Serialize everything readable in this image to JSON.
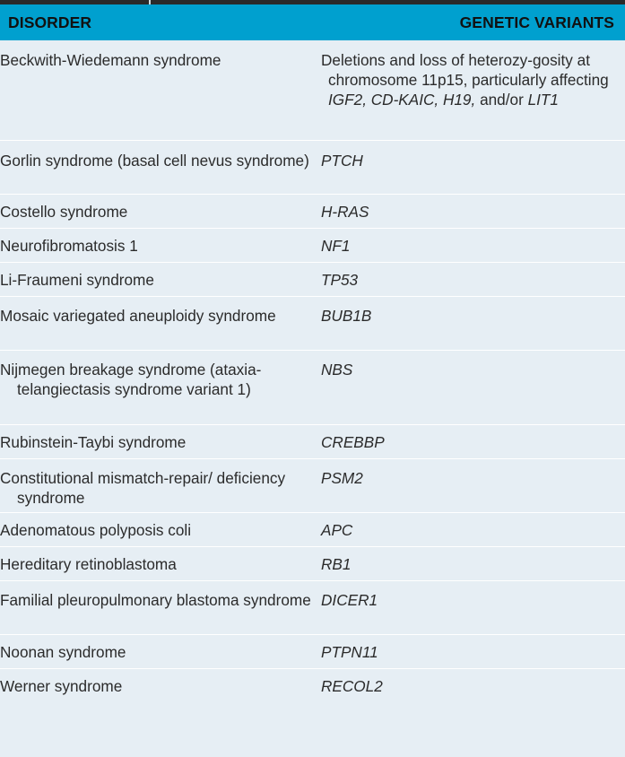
{
  "header": {
    "disorder_label": "DISORDER",
    "variants_label": "GENETIC VARIANTS"
  },
  "rows": [
    {
      "disorder": "Beckwith-Wiedemann syndrome",
      "variant_text_1": "Deletions and loss of heterozy-gosity at chromosome 11p15, particularly affecting",
      "variant_gene_1": "IGF2, CD-KAIC, H19,",
      "variant_text_2": "and/or",
      "variant_gene_2": "LIT1"
    },
    {
      "disorder": "Gorlin syndrome (basal cell nevus syndrome)",
      "variant": "PTCH"
    },
    {
      "disorder": "Costello syndrome",
      "variant": "H-RAS"
    },
    {
      "disorder": "Neurofibromatosis 1",
      "variant": "NF1"
    },
    {
      "disorder": "Li-Fraumeni syndrome",
      "variant": "TP53"
    },
    {
      "disorder": "Mosaic variegated aneuploidy syndrome",
      "variant": "BUB1B"
    },
    {
      "disorder": "Nijmegen breakage syndrome (ataxia-telangiectasis syndrome variant 1)",
      "variant": "NBS"
    },
    {
      "disorder": "Rubinstein-Taybi syndrome",
      "variant": "CREBBP"
    },
    {
      "disorder": "Constitutional mismatch-repair/ deficiency syndrome",
      "variant": "PSM2"
    },
    {
      "disorder": "Adenomatous polyposis coli",
      "variant": "APC"
    },
    {
      "disorder": "Hereditary retinoblastoma",
      "variant": "RB1"
    },
    {
      "disorder": "Familial pleuropulmonary blastoma syndrome",
      "variant": "DICER1"
    },
    {
      "disorder": "Noonan syndrome",
      "variant": "PTPN11"
    },
    {
      "disorder": "Werner syndrome",
      "variant": "RECOL2"
    }
  ]
}
